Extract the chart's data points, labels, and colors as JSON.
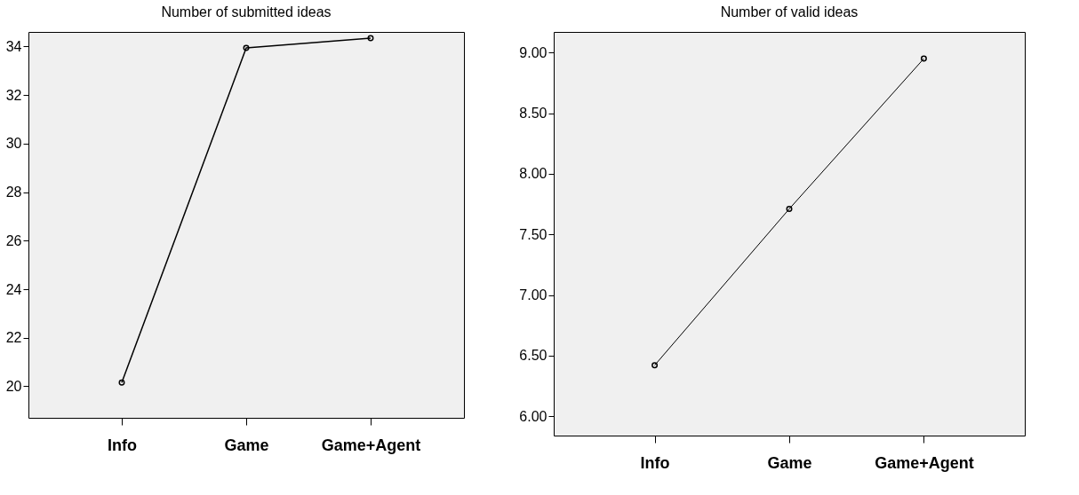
{
  "chart_data": [
    {
      "type": "line",
      "title": "Number of submitted ideas",
      "categories": [
        "Info",
        "Game",
        "Game+Agent"
      ],
      "series": [
        {
          "color": "#000000",
          "values": [
            20.15,
            33.94,
            34.34
          ]
        }
      ],
      "ylim": [
        18.7,
        34.6
      ],
      "yticks": [
        20,
        22,
        24,
        26,
        28,
        30,
        32,
        34
      ],
      "marker": "circle",
      "line_style": "solid",
      "grid": false
    },
    {
      "type": "line",
      "title": "Number of valid ideas",
      "categories": [
        "Info",
        "Game",
        "Game+Agent"
      ],
      "series": [
        {
          "color": "#000000",
          "values": [
            6.42,
            7.71,
            8.95
          ]
        }
      ],
      "ylim": [
        5.84,
        9.17
      ],
      "yticks": [
        {
          "value": 6,
          "label": "6.00"
        },
        {
          "value": 6.5,
          "label": "6.50"
        },
        {
          "value": 7,
          "label": "7.00"
        },
        {
          "value": 7.5,
          "label": "7.50"
        },
        {
          "value": 8,
          "label": "8.00"
        },
        {
          "value": 8.5,
          "label": "8.50"
        },
        {
          "value": 9,
          "label": "9.00"
        }
      ],
      "marker": "circle",
      "line_style": "solid",
      "grid": false
    }
  ]
}
